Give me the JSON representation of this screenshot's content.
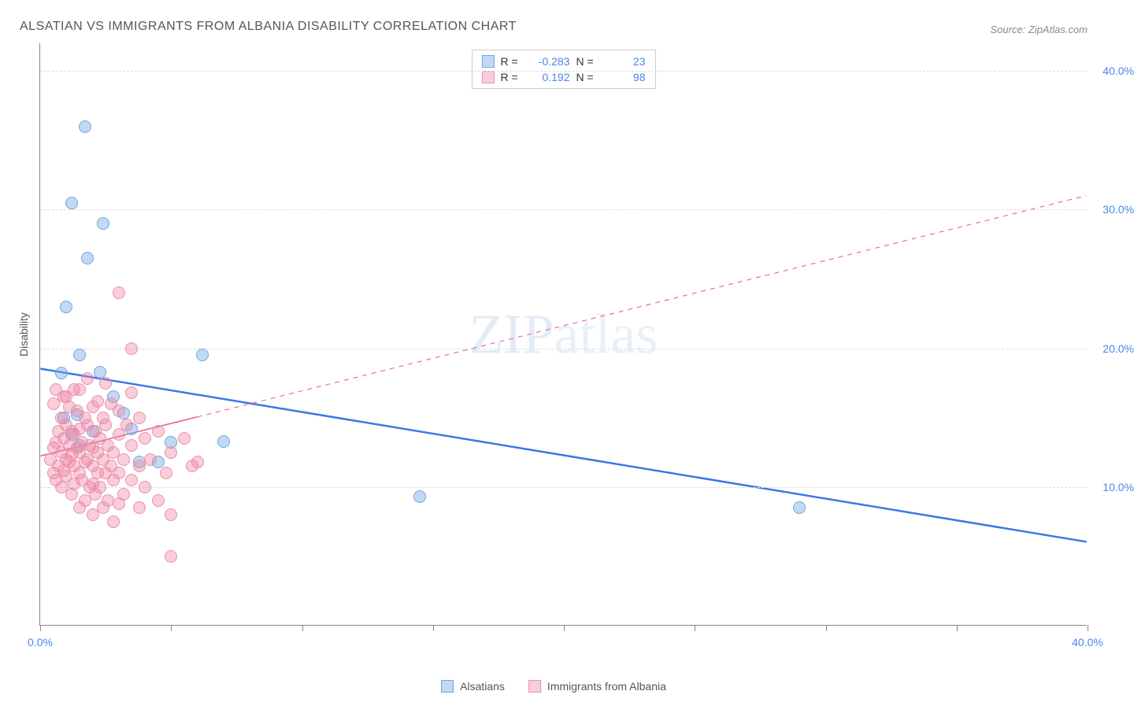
{
  "title": "ALSATIAN VS IMMIGRANTS FROM ALBANIA DISABILITY CORRELATION CHART",
  "source": "Source: ZipAtlas.com",
  "y_axis_label": "Disability",
  "watermark": {
    "part1": "ZIP",
    "part2": "atlas"
  },
  "chart": {
    "type": "scatter",
    "background_color": "#ffffff",
    "grid_color": "#dddddd",
    "axis_color": "#888888",
    "xlim": [
      0,
      40
    ],
    "ylim": [
      0,
      42
    ],
    "x_ticks": [
      0,
      5,
      10,
      15,
      20,
      25,
      30,
      35,
      40
    ],
    "x_tick_labels": {
      "0": "0.0%",
      "40": "40.0%"
    },
    "y_gridlines": [
      10,
      20,
      30,
      40
    ],
    "y_tick_labels": {
      "10": "10.0%",
      "20": "20.0%",
      "30": "30.0%",
      "40": "40.0%"
    },
    "marker_radius": 8,
    "series": [
      {
        "name": "Alsatians",
        "fill": "rgba(120,170,230,0.45)",
        "stroke": "#6fa8dc",
        "R": "-0.283",
        "N": "23",
        "trend": {
          "x1": 0,
          "y1": 18.5,
          "x2": 40,
          "y2": 6.0,
          "solid_until_x": 40,
          "color": "#3b78e7",
          "width": 2.5
        },
        "points": [
          [
            0.8,
            18.2
          ],
          [
            1.0,
            23.0
          ],
          [
            1.2,
            13.8
          ],
          [
            1.2,
            30.5
          ],
          [
            1.5,
            19.5
          ],
          [
            1.5,
            13.0
          ],
          [
            1.8,
            26.5
          ],
          [
            1.7,
            36.0
          ],
          [
            2.0,
            14.0
          ],
          [
            2.3,
            18.3
          ],
          [
            2.4,
            29.0
          ],
          [
            2.8,
            16.5
          ],
          [
            3.2,
            15.3
          ],
          [
            3.5,
            14.2
          ],
          [
            3.8,
            11.8
          ],
          [
            4.5,
            11.8
          ],
          [
            5.0,
            13.2
          ],
          [
            6.2,
            19.5
          ],
          [
            7.0,
            13.3
          ],
          [
            14.5,
            9.3
          ],
          [
            29.0,
            8.5
          ],
          [
            1.4,
            15.2
          ],
          [
            0.9,
            15.0
          ]
        ]
      },
      {
        "name": "Immigrants from Albania",
        "fill": "rgba(240,130,160,0.4)",
        "stroke": "#e892ad",
        "R": "0.192",
        "N": "98",
        "trend": {
          "x1": 0,
          "y1": 12.2,
          "x2": 40,
          "y2": 31.0,
          "solid_until_x": 6,
          "color": "#e95b8c",
          "width": 1.5
        },
        "points": [
          [
            0.4,
            12.0
          ],
          [
            0.5,
            11.0
          ],
          [
            0.5,
            12.8
          ],
          [
            0.6,
            10.5
          ],
          [
            0.6,
            13.2
          ],
          [
            0.7,
            11.5
          ],
          [
            0.7,
            14.0
          ],
          [
            0.8,
            10.0
          ],
          [
            0.8,
            12.5
          ],
          [
            0.8,
            15.0
          ],
          [
            0.9,
            11.2
          ],
          [
            0.9,
            13.5
          ],
          [
            0.9,
            16.5
          ],
          [
            1.0,
            10.8
          ],
          [
            1.0,
            12.0
          ],
          [
            1.0,
            14.5
          ],
          [
            1.1,
            11.8
          ],
          [
            1.1,
            13.0
          ],
          [
            1.1,
            15.8
          ],
          [
            1.2,
            9.5
          ],
          [
            1.2,
            12.3
          ],
          [
            1.2,
            14.0
          ],
          [
            1.3,
            10.2
          ],
          [
            1.3,
            11.5
          ],
          [
            1.3,
            13.8
          ],
          [
            1.4,
            12.8
          ],
          [
            1.4,
            15.5
          ],
          [
            1.5,
            8.5
          ],
          [
            1.5,
            11.0
          ],
          [
            1.5,
            12.5
          ],
          [
            1.5,
            14.2
          ],
          [
            1.5,
            17.0
          ],
          [
            1.6,
            10.5
          ],
          [
            1.6,
            13.2
          ],
          [
            1.7,
            9.0
          ],
          [
            1.7,
            11.8
          ],
          [
            1.7,
            15.0
          ],
          [
            1.8,
            12.0
          ],
          [
            1.8,
            14.5
          ],
          [
            1.8,
            17.8
          ],
          [
            1.9,
            10.0
          ],
          [
            1.9,
            13.0
          ],
          [
            2.0,
            8.0
          ],
          [
            2.0,
            11.5
          ],
          [
            2.0,
            12.8
          ],
          [
            2.0,
            15.8
          ],
          [
            2.1,
            9.5
          ],
          [
            2.1,
            14.0
          ],
          [
            2.2,
            11.0
          ],
          [
            2.2,
            12.5
          ],
          [
            2.2,
            16.2
          ],
          [
            2.3,
            10.0
          ],
          [
            2.3,
            13.5
          ],
          [
            2.4,
            8.5
          ],
          [
            2.4,
            12.0
          ],
          [
            2.4,
            15.0
          ],
          [
            2.5,
            11.0
          ],
          [
            2.5,
            14.5
          ],
          [
            2.5,
            17.5
          ],
          [
            2.6,
            9.0
          ],
          [
            2.6,
            13.0
          ],
          [
            2.7,
            11.5
          ],
          [
            2.7,
            16.0
          ],
          [
            2.8,
            10.5
          ],
          [
            2.8,
            12.5
          ],
          [
            2.8,
            7.5
          ],
          [
            3.0,
            8.8
          ],
          [
            3.0,
            11.0
          ],
          [
            3.0,
            13.8
          ],
          [
            3.0,
            15.5
          ],
          [
            3.0,
            24.0
          ],
          [
            3.2,
            9.5
          ],
          [
            3.2,
            12.0
          ],
          [
            3.3,
            14.5
          ],
          [
            3.5,
            10.5
          ],
          [
            3.5,
            13.0
          ],
          [
            3.5,
            16.8
          ],
          [
            3.5,
            20.0
          ],
          [
            3.8,
            8.5
          ],
          [
            3.8,
            11.5
          ],
          [
            3.8,
            15.0
          ],
          [
            4.0,
            10.0
          ],
          [
            4.0,
            13.5
          ],
          [
            4.2,
            12.0
          ],
          [
            4.5,
            9.0
          ],
          [
            4.5,
            14.0
          ],
          [
            4.8,
            11.0
          ],
          [
            5.0,
            8.0
          ],
          [
            5.0,
            12.5
          ],
          [
            5.0,
            5.0
          ],
          [
            5.5,
            13.5
          ],
          [
            5.8,
            11.5
          ],
          [
            6.0,
            11.8
          ],
          [
            0.5,
            16.0
          ],
          [
            0.6,
            17.0
          ],
          [
            1.0,
            16.5
          ],
          [
            1.3,
            17.0
          ],
          [
            2.0,
            10.2
          ]
        ]
      }
    ]
  },
  "stats_legend": {
    "r_label": "R =",
    "n_label": "N ="
  },
  "colors": {
    "tick_label": "#4a86e8",
    "title": "#555555"
  }
}
